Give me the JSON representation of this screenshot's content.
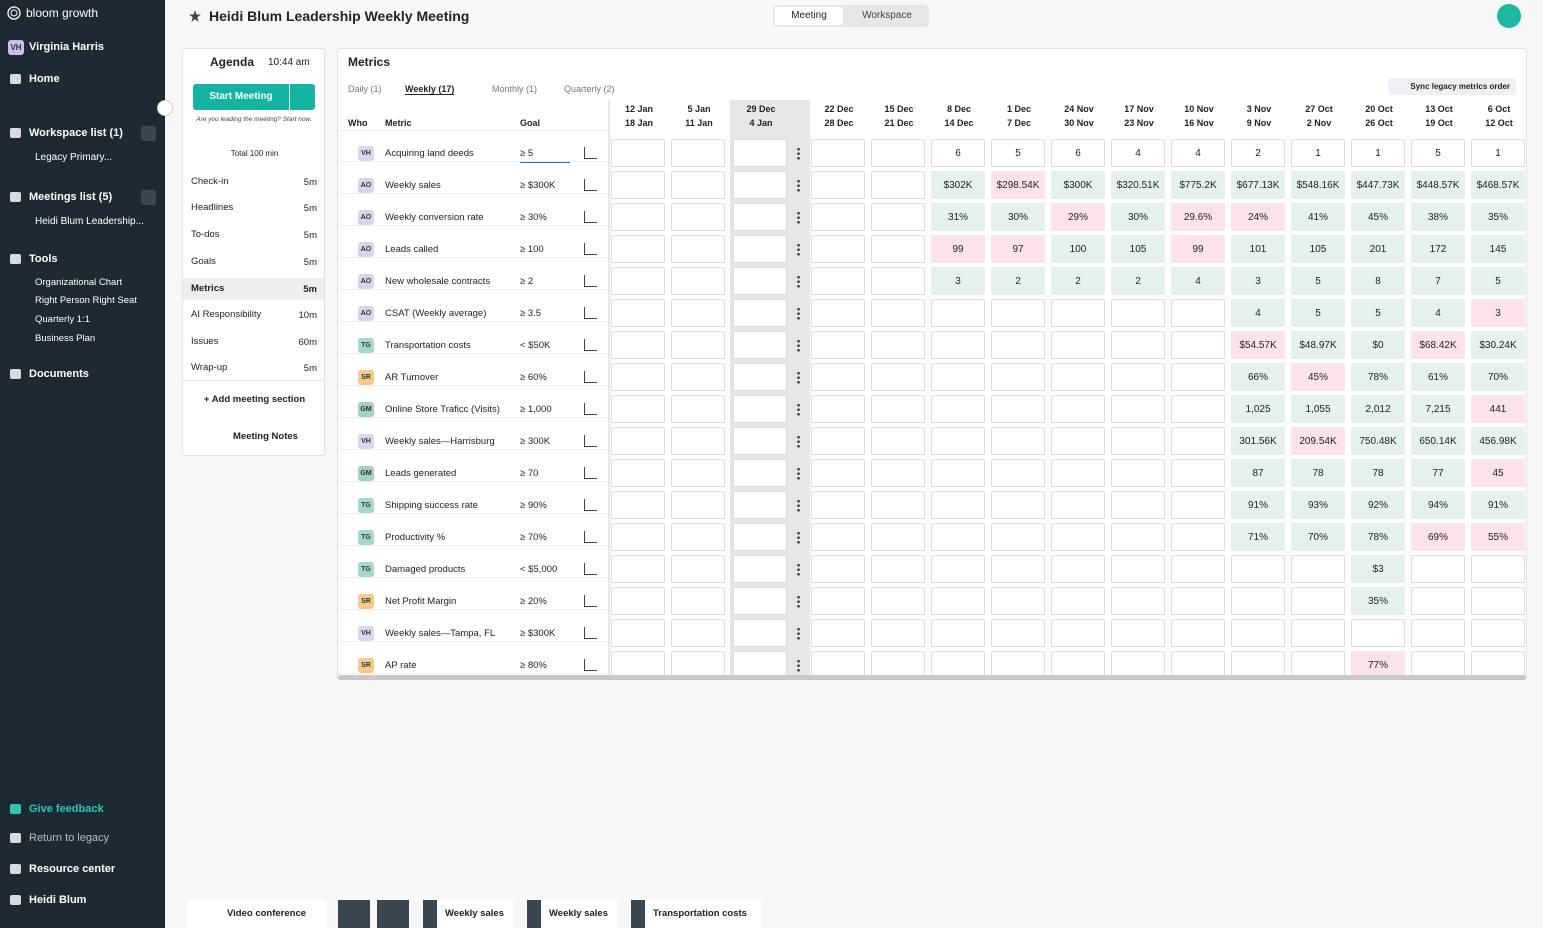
{
  "sidebar": {
    "brand": "bloom growth",
    "user_initials": "VH",
    "user_name": "Virginia Harris",
    "home": "Home",
    "workspace_list": "Workspace list (1)",
    "workspace_items": [
      "Legacy Primary..."
    ],
    "meetings_list": "Meetings list (5)",
    "meeting_items": [
      "Heidi Blum Leadership..."
    ],
    "tools": "Tools",
    "tool_items": [
      "Organizational Chart",
      "Right Person Right Seat",
      "Quarterly 1:1",
      "Business Plan"
    ],
    "documents": "Documents",
    "give_feedback": "Give feedback",
    "return_legacy": "Return to legacy",
    "resource_center": "Resource center",
    "account": "Heidi Blum"
  },
  "header": {
    "title": "Heidi Blum Leadership Weekly Meeting",
    "tabs": [
      "Meeting",
      "Workspace"
    ]
  },
  "agenda": {
    "title": "Agenda",
    "time": "10:44 am",
    "start": "Start Meeting",
    "prompt": "Are you leading the meeting? Start now.",
    "total": "Total 100 min",
    "items": [
      [
        "Check-in",
        "5m"
      ],
      [
        "Headlines",
        "5m"
      ],
      [
        "To-dos",
        "5m"
      ],
      [
        "Goals",
        "5m"
      ],
      [
        "Metrics",
        "5m"
      ],
      [
        "AI Responsibility",
        "10m"
      ],
      [
        "Issues",
        "60m"
      ],
      [
        "Wrap-up",
        "5m"
      ]
    ],
    "add_section": "+ Add meeting section",
    "notes": "Meeting Notes"
  },
  "avatar_colors": {
    "VH": "#dcd5f2",
    "AO": "#d9d3ee",
    "TG": "#a9d6cd",
    "SR": "#f8c98b",
    "GM": "#a3d2bd"
  },
  "metrics": {
    "title": "Metrics",
    "tabs": [
      "Daily (1)",
      "Weekly (17)",
      "Monthly (1)",
      "Quarterly (2)"
    ],
    "sync": "Sync legacy metrics order",
    "columns": [
      "Who",
      "Metric",
      "Goal"
    ],
    "weeks": [
      [
        "12 Jan",
        "18 Jan"
      ],
      [
        "5 Jan",
        "11 Jan"
      ],
      [
        "29 Dec",
        "4 Jan"
      ],
      [
        "22 Dec",
        "28 Dec"
      ],
      [
        "15 Dec",
        "21 Dec"
      ],
      [
        "8 Dec",
        "14 Dec"
      ],
      [
        "1 Dec",
        "7 Dec"
      ],
      [
        "24 Nov",
        "30 Nov"
      ],
      [
        "17 Nov",
        "23 Nov"
      ],
      [
        "10 Nov",
        "16 Nov"
      ],
      [
        "3 Nov",
        "9 Nov"
      ],
      [
        "27 Oct",
        "2 Nov"
      ],
      [
        "20 Oct",
        "26 Oct"
      ],
      [
        "13 Oct",
        "19 Oct"
      ],
      [
        "6 Oct",
        "12 Oct"
      ]
    ],
    "rows": [
      {
        "who": "VH",
        "metric": "Acquiring land deeds",
        "goal": "≥ 5",
        "values": [
          null,
          null,
          null,
          null,
          null,
          "6",
          "5",
          "6",
          "4",
          "4",
          "2",
          "1",
          "1",
          "5",
          "1"
        ]
      },
      {
        "who": "AO",
        "metric": "Weekly sales",
        "goal": "≥ $300K",
        "values": [
          null,
          null,
          null,
          null,
          null,
          "$302K",
          "$298.54K",
          "$300K",
          "$320.51K",
          "$775.2K",
          "$677.13K",
          "$548.16K",
          "$447.73K",
          "$448.57K",
          "$468.57K"
        ],
        "fills": [
          null,
          null,
          null,
          null,
          null,
          "#e5f2eb",
          "#fce3e9",
          "#e5f2eb",
          "#e5f2eb",
          "#e5f2eb",
          "#e5f2eb",
          "#e5f2eb",
          "#e5f2eb",
          "#e5f2eb",
          "#e5f2eb"
        ]
      },
      {
        "who": "AO",
        "metric": "Weekly conversion rate",
        "goal": "≥ 30%",
        "values": [
          null,
          null,
          null,
          null,
          null,
          "31%",
          "30%",
          "29%",
          "30%",
          "29.6%",
          "24%",
          "41%",
          "45%",
          "38%",
          "35%"
        ],
        "fills": [
          null,
          null,
          null,
          null,
          null,
          "#e5f2eb",
          "#e5f2eb",
          "#fce3e9",
          "#e5f2eb",
          "#fce3e9",
          "#fce3e9",
          "#e5f2eb",
          "#e5f2eb",
          "#e5f2eb",
          "#e5f2eb"
        ]
      },
      {
        "who": "AO",
        "metric": "Leads called",
        "goal": "≥ 100",
        "values": [
          null,
          null,
          null,
          null,
          null,
          "99",
          "97",
          "100",
          "105",
          "99",
          "101",
          "105",
          "201",
          "172",
          "145"
        ],
        "fills": [
          null,
          null,
          null,
          null,
          null,
          "#fce3e9",
          "#fce3e9",
          "#e5f2eb",
          "#e5f2eb",
          "#fce3e9",
          "#e5f2eb",
          "#e5f2eb",
          "#e5f2eb",
          "#e5f2eb",
          "#e5f2eb"
        ]
      },
      {
        "who": "AO",
        "metric": "New wholesale contracts",
        "goal": "≥ 2",
        "values": [
          null,
          null,
          null,
          null,
          null,
          "3",
          "2",
          "2",
          "2",
          "4",
          "3",
          "5",
          "8",
          "7",
          "5"
        ],
        "fills": [
          null,
          null,
          null,
          null,
          null,
          "#e5f2eb",
          "#e5f2eb",
          "#e5f2eb",
          "#e5f2eb",
          "#e5f2eb",
          "#e5f2eb",
          "#e5f2eb",
          "#e5f2eb",
          "#e5f2eb",
          "#e5f2eb"
        ]
      },
      {
        "who": "AO",
        "metric": "CSAT (Weekly average)",
        "goal": "≥ 3.5",
        "values": [
          null,
          null,
          null,
          null,
          null,
          null,
          null,
          null,
          null,
          null,
          "4",
          "5",
          "5",
          "4",
          "3"
        ],
        "fills": [
          null,
          null,
          null,
          null,
          null,
          null,
          null,
          null,
          null,
          null,
          "#e5f2eb",
          "#e5f2eb",
          "#e5f2eb",
          "#e5f2eb",
          "#fce3e9"
        ]
      },
      {
        "who": "TG",
        "metric": "Transportation costs",
        "goal": "< $50K",
        "values": [
          null,
          null,
          null,
          null,
          null,
          null,
          null,
          null,
          null,
          null,
          "$54.57K",
          "$48.97K",
          "$0",
          "$68.42K",
          "$30.24K"
        ],
        "fills": [
          null,
          null,
          null,
          null,
          null,
          null,
          null,
          null,
          null,
          null,
          "#fce3e9",
          "#e5f2eb",
          "#e5f2eb",
          "#fce3e9",
          "#e5f2eb"
        ]
      },
      {
        "who": "SR",
        "metric": "AR Turnover",
        "goal": "≥ 60%",
        "values": [
          null,
          null,
          null,
          null,
          null,
          null,
          null,
          null,
          null,
          null,
          "66%",
          "45%",
          "78%",
          "61%",
          "70%"
        ],
        "fills": [
          null,
          null,
          null,
          null,
          null,
          null,
          null,
          null,
          null,
          null,
          "#e5f2eb",
          "#fce3e9",
          "#e5f2eb",
          "#e5f2eb",
          "#e5f2eb"
        ]
      },
      {
        "who": "GM",
        "metric": "Online Store Traficc (Visits)",
        "goal": "≥ 1,000",
        "values": [
          null,
          null,
          null,
          null,
          null,
          null,
          null,
          null,
          null,
          null,
          "1,025",
          "1,055",
          "2,012",
          "7,215",
          "441"
        ],
        "fills": [
          null,
          null,
          null,
          null,
          null,
          null,
          null,
          null,
          null,
          null,
          "#e5f2eb",
          "#e5f2eb",
          "#e5f2eb",
          "#e5f2eb",
          "#fce3e9"
        ]
      },
      {
        "who": "VH",
        "metric": "Weekly sales—Harrisburg",
        "goal": "≥ 300K",
        "values": [
          null,
          null,
          null,
          null,
          null,
          null,
          null,
          null,
          null,
          null,
          "301.56K",
          "209.54K",
          "750.48K",
          "650.14K",
          "456.98K"
        ],
        "fills": [
          null,
          null,
          null,
          null,
          null,
          null,
          null,
          null,
          null,
          null,
          "#e5f2eb",
          "#fce3e9",
          "#e5f2eb",
          "#e5f2eb",
          "#e5f2eb"
        ]
      },
      {
        "who": "GM",
        "metric": "Leads generated",
        "goal": "≥ 70",
        "values": [
          null,
          null,
          null,
          null,
          null,
          null,
          null,
          null,
          null,
          null,
          "87",
          "78",
          "78",
          "77",
          "45"
        ],
        "fills": [
          null,
          null,
          null,
          null,
          null,
          null,
          null,
          null,
          null,
          null,
          "#e5f2eb",
          "#e5f2eb",
          "#e5f2eb",
          "#e5f2eb",
          "#fce3e9"
        ]
      },
      {
        "who": "TG",
        "metric": "Shipping success rate",
        "goal": "≥ 90%",
        "values": [
          null,
          null,
          null,
          null,
          null,
          null,
          null,
          null,
          null,
          null,
          "91%",
          "93%",
          "92%",
          "94%",
          "91%"
        ],
        "fills": [
          null,
          null,
          null,
          null,
          null,
          null,
          null,
          null,
          null,
          null,
          "#e5f2eb",
          "#e5f2eb",
          "#e5f2eb",
          "#e5f2eb",
          "#e5f2eb"
        ]
      },
      {
        "who": "TG",
        "metric": "Productivity %",
        "goal": "≥ 70%",
        "values": [
          null,
          null,
          null,
          null,
          null,
          null,
          null,
          null,
          null,
          null,
          "71%",
          "70%",
          "78%",
          "69%",
          "55%"
        ],
        "fills": [
          null,
          null,
          null,
          null,
          null,
          null,
          null,
          null,
          null,
          null,
          "#e5f2eb",
          "#e5f2eb",
          "#e5f2eb",
          "#fce3e9",
          "#fce3e9"
        ]
      },
      {
        "who": "TG",
        "metric": "Damaged products",
        "goal": "< $5,000",
        "values": [
          null,
          null,
          null,
          null,
          null,
          null,
          null,
          null,
          null,
          null,
          null,
          null,
          "$3",
          null,
          null
        ],
        "fills": [
          null,
          null,
          null,
          null,
          null,
          null,
          null,
          null,
          null,
          null,
          null,
          null,
          "#e5f2eb",
          null,
          null
        ]
      },
      {
        "who": "SR",
        "metric": "Net Profit Margin",
        "goal": "≥ 20%",
        "values": [
          null,
          null,
          null,
          null,
          null,
          null,
          null,
          null,
          null,
          null,
          null,
          null,
          "35%",
          null,
          null
        ],
        "fills": [
          null,
          null,
          null,
          null,
          null,
          null,
          null,
          null,
          null,
          null,
          null,
          null,
          "#e5f2eb",
          null,
          null
        ]
      },
      {
        "who": "VH",
        "metric": "Weekly sales—Tampa, FL",
        "goal": "≥ $300K",
        "values": [
          null,
          null,
          null,
          null,
          null,
          null,
          null,
          null,
          null,
          null,
          null,
          null,
          null,
          null,
          null
        ]
      },
      {
        "who": "SR",
        "metric": "AP rate",
        "goal": "≥ 80%",
        "values": [
          null,
          null,
          null,
          null,
          null,
          null,
          null,
          null,
          null,
          null,
          null,
          null,
          "77%",
          null,
          null
        ],
        "fills": [
          null,
          null,
          null,
          null,
          null,
          null,
          null,
          null,
          null,
          null,
          null,
          null,
          "#fce3e9",
          null,
          null
        ]
      }
    ]
  },
  "bottom_bar": {
    "items": [
      "Video conference",
      "Weekly sales",
      "Weekly sales",
      "Transportation costs"
    ]
  }
}
